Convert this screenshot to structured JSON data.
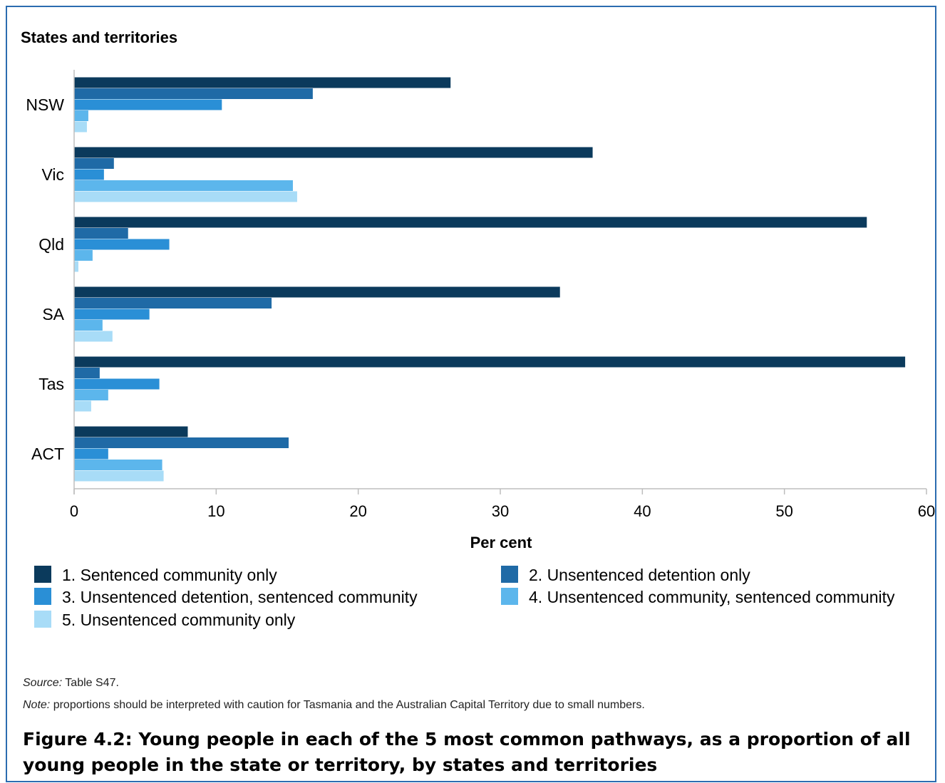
{
  "chart_data": {
    "type": "bar",
    "orientation": "horizontal",
    "subtitle": "States and territories",
    "xlabel": "Per cent",
    "ylabel": "",
    "xlim": [
      0,
      60
    ],
    "xticks": [
      0,
      10,
      20,
      30,
      40,
      50,
      60
    ],
    "grid": false,
    "legend_position": "bottom",
    "categories": [
      "NSW",
      "Vic",
      "Qld",
      "SA",
      "Tas",
      "ACT"
    ],
    "series": [
      {
        "name": "1. Sentenced community only",
        "color": "#0b3a5c",
        "values": [
          26.5,
          36.5,
          55.8,
          34.2,
          58.5,
          8.0
        ]
      },
      {
        "name": "2. Unsentenced detention only",
        "color": "#1f6aa6",
        "values": [
          16.8,
          2.8,
          3.8,
          13.9,
          1.8,
          15.1
        ]
      },
      {
        "name": "3. Unsentenced detention, sentenced community",
        "color": "#2a8fd6",
        "values": [
          10.4,
          2.1,
          6.7,
          5.3,
          6.0,
          2.4
        ]
      },
      {
        "name": "4. Unsentenced community, sentenced community",
        "color": "#5cb6ec",
        "values": [
          1.0,
          15.4,
          1.3,
          2.0,
          2.4,
          6.2
        ]
      },
      {
        "name": "5. Unsentenced community only",
        "color": "#a8dcf7",
        "values": [
          0.9,
          15.7,
          0.3,
          2.7,
          1.2,
          6.3
        ]
      }
    ]
  },
  "footer": {
    "source_label": "Source:",
    "source_text": " Table S47.",
    "note_label": "Note:",
    "note_text": " proportions should be interpreted with caution for Tasmania and the Australian Capital Territory due to small numbers.",
    "figure_caption": "Figure 4.2: Young people in each of the 5 most common pathways, as a proportion of all young people in the state or territory, by states and territories"
  }
}
